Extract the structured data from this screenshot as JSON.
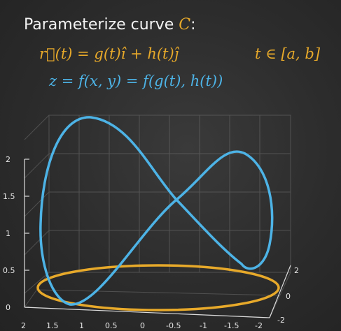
{
  "heading": {
    "text": "Parameterize curve",
    "curve_var": "C",
    "suffix": ":"
  },
  "equations": {
    "r_t": "r⃗(t) = g(t)î + h(t)ĵ",
    "t_range": "t ∈ [a, b]",
    "z": "z = f(x, y) = f(g(t), h(t))"
  },
  "colors": {
    "background": "#2c2c2c",
    "heading": "#f2f2f2",
    "accent_orange": "#e7a92a",
    "accent_blue": "#4db3e6",
    "grid": "#6f6f6f"
  },
  "plot": {
    "z_axis_ticks": [
      "2",
      "1.5",
      "1",
      "0.5",
      "0"
    ],
    "x_axis_ticks": [
      "2",
      "1.5",
      "1",
      "0.5",
      "0",
      "-0.5",
      "-1",
      "-1.5",
      "-2"
    ],
    "y_axis_ticks": [
      "2",
      "0",
      "-2"
    ],
    "grid": true,
    "curves": [
      {
        "name_icon": "figure-eight-space-curve",
        "color": "#4db3e6"
      },
      {
        "name_icon": "ellipse-base-curve",
        "color": "#e7a92a"
      }
    ]
  }
}
